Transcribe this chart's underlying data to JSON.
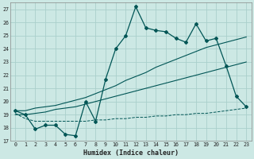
{
  "xlabel": "Humidex (Indice chaleur)",
  "background_color": "#cce8e4",
  "grid_color": "#aacfcb",
  "line_color": "#005555",
  "xlim": [
    -0.5,
    23.5
  ],
  "ylim": [
    17,
    27.5
  ],
  "yticks": [
    17,
    18,
    19,
    20,
    21,
    22,
    23,
    24,
    25,
    26,
    27
  ],
  "xticks": [
    0,
    1,
    2,
    3,
    4,
    5,
    6,
    7,
    8,
    9,
    10,
    11,
    12,
    13,
    14,
    15,
    16,
    17,
    18,
    19,
    20,
    21,
    22,
    23
  ],
  "series_main": [
    19.3,
    19.0,
    17.9,
    18.2,
    18.2,
    17.5,
    17.4,
    20.0,
    18.5,
    21.7,
    24.0,
    25.0,
    27.2,
    25.6,
    25.4,
    25.3,
    24.8,
    24.5,
    25.9,
    24.6,
    24.8,
    22.7,
    20.4,
    19.6
  ],
  "series_trend1": [
    19.3,
    19.3,
    19.5,
    19.6,
    19.7,
    19.9,
    20.1,
    20.3,
    20.6,
    20.9,
    21.2,
    21.6,
    21.9,
    22.2,
    22.6,
    22.9,
    23.2,
    23.5,
    23.8,
    24.1,
    24.3,
    24.5,
    24.7,
    24.9
  ],
  "series_trend2": [
    19.0,
    19.0,
    19.1,
    19.2,
    19.4,
    19.5,
    19.6,
    19.8,
    20.0,
    20.2,
    20.4,
    20.6,
    20.8,
    21.0,
    21.2,
    21.4,
    21.6,
    21.8,
    22.0,
    22.2,
    22.4,
    22.6,
    22.8,
    23.0
  ],
  "series_flat": [
    19.1,
    18.7,
    18.5,
    18.5,
    18.5,
    18.5,
    18.5,
    18.5,
    18.6,
    18.6,
    18.7,
    18.7,
    18.8,
    18.8,
    18.9,
    18.9,
    19.0,
    19.0,
    19.1,
    19.1,
    19.2,
    19.3,
    19.4,
    19.5
  ]
}
